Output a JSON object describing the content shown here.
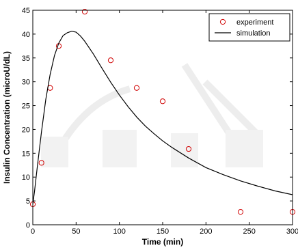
{
  "chart_data": {
    "type": "line",
    "xlabel": "Time (min)",
    "ylabel": "Insulin Concentration (microU/dL)",
    "xlim": [
      0,
      300
    ],
    "ylim": [
      0,
      45
    ],
    "xticks": [
      0,
      50,
      100,
      150,
      200,
      250,
      300
    ],
    "yticks": [
      0,
      5,
      10,
      15,
      20,
      25,
      30,
      35,
      40,
      45
    ],
    "grid": false,
    "legend_position": "top-right",
    "series": [
      {
        "name": "experiment",
        "type": "scatter",
        "marker": "circle",
        "color": "#d00000",
        "x": [
          0,
          10,
          20,
          30,
          60,
          90,
          120,
          150,
          180,
          240,
          300
        ],
        "y": [
          4.3,
          13.0,
          28.7,
          37.5,
          44.7,
          34.5,
          28.7,
          25.9,
          15.9,
          2.7,
          2.7
        ]
      },
      {
        "name": "simulation",
        "type": "line",
        "color": "#000000",
        "x": [
          0,
          2,
          5,
          10,
          15,
          20,
          25,
          30,
          35,
          40,
          45,
          50,
          55,
          60,
          70,
          80,
          90,
          100,
          110,
          120,
          130,
          140,
          150,
          160,
          180,
          200,
          220,
          240,
          260,
          280,
          300
        ],
        "y": [
          4.3,
          7.0,
          11.8,
          19.5,
          26.3,
          31.5,
          35.5,
          38.1,
          39.7,
          40.3,
          40.6,
          40.4,
          39.6,
          38.5,
          35.8,
          32.8,
          29.9,
          27.2,
          24.8,
          22.6,
          20.7,
          19.1,
          17.6,
          16.3,
          14.0,
          12.0,
          10.5,
          9.2,
          8.1,
          7.1,
          6.3
        ]
      }
    ]
  }
}
